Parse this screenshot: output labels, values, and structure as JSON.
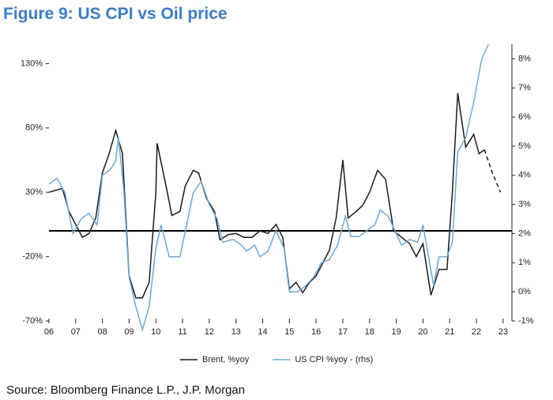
{
  "chart_data": {
    "type": "line",
    "title": "Figure 9: US CPI vs Oil price",
    "source": "Source: Bloomberg Finance L.P., J.P. Morgan",
    "xlim": [
      2006,
      2023.33
    ],
    "xticks": [
      {
        "value": 2006,
        "label": "06"
      },
      {
        "value": 2007,
        "label": "07"
      },
      {
        "value": 2008,
        "label": "08"
      },
      {
        "value": 2009,
        "label": "09"
      },
      {
        "value": 2010,
        "label": "10"
      },
      {
        "value": 2011,
        "label": "11"
      },
      {
        "value": 2012,
        "label": "12"
      },
      {
        "value": 2013,
        "label": "13"
      },
      {
        "value": 2014,
        "label": "14"
      },
      {
        "value": 2015,
        "label": "15"
      },
      {
        "value": 2016,
        "label": "16"
      },
      {
        "value": 2017,
        "label": "17"
      },
      {
        "value": 2018,
        "label": "18"
      },
      {
        "value": 2019,
        "label": "19"
      },
      {
        "value": 2020,
        "label": "20"
      },
      {
        "value": 2021,
        "label": "21"
      },
      {
        "value": 2022,
        "label": "22"
      },
      {
        "value": 2023,
        "label": "23"
      }
    ],
    "ylim": [
      -70,
      145
    ],
    "yticks": [
      {
        "value": -70,
        "label": "-70%"
      },
      {
        "value": -20,
        "label": "-20%"
      },
      {
        "value": 30,
        "label": "30%"
      },
      {
        "value": 80,
        "label": "80%"
      },
      {
        "value": 130,
        "label": "130%"
      }
    ],
    "y2lim": [
      -1,
      8.5
    ],
    "y2ticks": [
      {
        "value": -1,
        "label": "-1%"
      },
      {
        "value": 0,
        "label": "0%"
      },
      {
        "value": 1,
        "label": "1%"
      },
      {
        "value": 2,
        "label": "2%"
      },
      {
        "value": 3,
        "label": "3%"
      },
      {
        "value": 4,
        "label": "4%"
      },
      {
        "value": 5,
        "label": "5%"
      },
      {
        "value": 6,
        "label": "6%"
      },
      {
        "value": 7,
        "label": "7%"
      },
      {
        "value": 8,
        "label": "8%"
      }
    ],
    "zero_line": true,
    "series": [
      {
        "name": "Brent, %yoy",
        "color": "#1a1a1a",
        "axis": "y",
        "x": [
          2006.0,
          2006.5,
          2006.75,
          2007.0,
          2007.25,
          2007.5,
          2007.75,
          2008.0,
          2008.25,
          2008.5,
          2008.75,
          2009.0,
          2009.25,
          2009.5,
          2009.75,
          2010.0,
          2010.05,
          2010.4,
          2010.6,
          2010.9,
          2011.1,
          2011.4,
          2011.6,
          2011.9,
          2012.2,
          2012.4,
          2012.7,
          2013.0,
          2013.3,
          2013.6,
          2013.9,
          2014.2,
          2014.5,
          2014.75,
          2015.0,
          2015.25,
          2015.5,
          2015.75,
          2016.0,
          2016.25,
          2016.5,
          2016.75,
          2017.0,
          2017.2,
          2017.5,
          2017.75,
          2018.0,
          2018.3,
          2018.6,
          2018.9,
          2019.2,
          2019.5,
          2019.75,
          2020.0,
          2020.3,
          2020.6,
          2020.9,
          2021.1,
          2021.3,
          2021.6,
          2021.9,
          2022.1,
          2022.3
        ],
        "values": [
          30,
          33,
          15,
          5,
          -5,
          -2,
          10,
          45,
          60,
          78,
          60,
          -35,
          -52,
          -52,
          -40,
          30,
          68,
          33,
          12,
          15,
          35,
          47,
          45,
          25,
          15,
          -7,
          -3,
          -2,
          -5,
          -5,
          0,
          -2,
          5,
          -5,
          -45,
          -40,
          -48,
          -40,
          -35,
          -25,
          -15,
          10,
          55,
          10,
          15,
          20,
          30,
          47,
          40,
          0,
          -5,
          -10,
          -20,
          -10,
          -50,
          -30,
          -30,
          30,
          107,
          65,
          75,
          60,
          63
        ]
      },
      {
        "name": "US CPI %yoy - (rhs)",
        "color": "#6fa8d6",
        "axis": "y2",
        "x": [
          2006.0,
          2006.3,
          2006.6,
          2006.9,
          2007.2,
          2007.5,
          2007.8,
          2008.0,
          2008.3,
          2008.5,
          2008.6,
          2008.8,
          2009.0,
          2009.25,
          2009.5,
          2009.75,
          2010.0,
          2010.2,
          2010.5,
          2010.9,
          2011.2,
          2011.4,
          2011.7,
          2012.0,
          2012.3,
          2012.5,
          2012.9,
          2013.2,
          2013.4,
          2013.7,
          2013.9,
          2014.2,
          2014.5,
          2014.8,
          2015.0,
          2015.3,
          2015.6,
          2015.9,
          2016.2,
          2016.5,
          2016.8,
          2017.1,
          2017.3,
          2017.6,
          2017.9,
          2018.2,
          2018.4,
          2018.7,
          2018.9,
          2019.2,
          2019.5,
          2019.8,
          2020.0,
          2020.4,
          2020.6,
          2020.9,
          2021.1,
          2021.3,
          2021.6,
          2021.9,
          2022.1,
          2022.2,
          2022.45
        ],
        "values": [
          3.7,
          3.9,
          3.4,
          2.0,
          2.5,
          2.7,
          2.3,
          4.0,
          4.2,
          4.5,
          5.3,
          3.5,
          0.5,
          -0.5,
          -1.3,
          -0.5,
          1.5,
          2.3,
          1.2,
          1.2,
          2.5,
          3.4,
          3.8,
          3.0,
          2.5,
          1.7,
          1.8,
          1.6,
          1.4,
          1.6,
          1.2,
          1.4,
          2.1,
          1.5,
          0.0,
          0.0,
          0.2,
          0.5,
          1.0,
          1.1,
          1.6,
          2.6,
          1.9,
          1.9,
          2.1,
          2.3,
          2.8,
          2.6,
          2.2,
          1.6,
          1.8,
          1.7,
          2.3,
          0.2,
          1.2,
          1.2,
          1.7,
          4.8,
          5.3,
          6.5,
          7.5,
          8.0,
          8.5
        ]
      },
      {
        "color": "#1a1a1a",
        "axis": "y",
        "dashed": true,
        "x": [
          2022.3,
          2022.6,
          2022.9
        ],
        "values": [
          63,
          45,
          30
        ]
      }
    ]
  }
}
